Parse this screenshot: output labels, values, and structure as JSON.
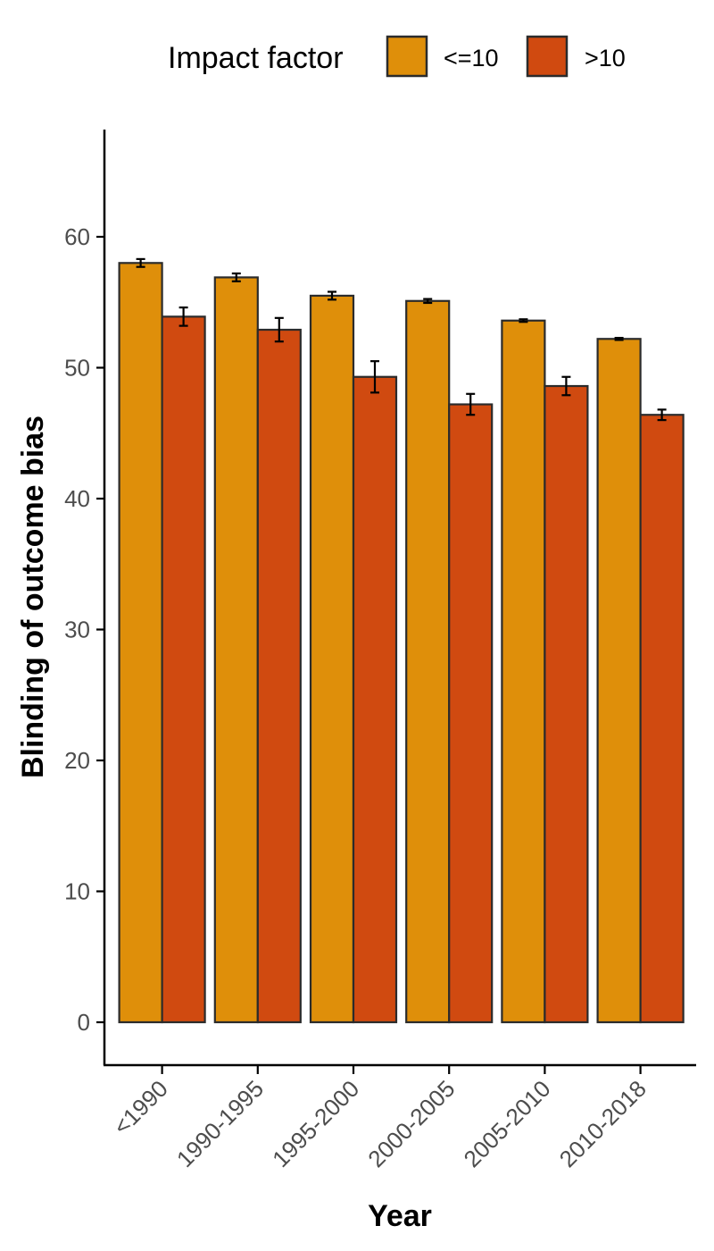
{
  "chart_data": {
    "type": "bar",
    "title": "",
    "xlabel": "Year",
    "ylabel": "Blinding of outcome bias",
    "ylim": [
      -3.2,
      68.2
    ],
    "yticks": [
      0,
      10,
      20,
      30,
      40,
      50,
      60
    ],
    "categories": [
      "<1990",
      "1990-1995",
      "1995-2000",
      "2000-2005",
      "2005-2010",
      "2010-2018"
    ],
    "legend": {
      "title": "Impact factor",
      "position": "top"
    },
    "series": [
      {
        "name": "<=10",
        "color": "#DF8F0A",
        "values": [
          58.0,
          56.9,
          55.5,
          55.1,
          53.6,
          52.2
        ],
        "errors": [
          0.3,
          0.3,
          0.3,
          0.15,
          0.1,
          0.08
        ]
      },
      {
        "name": ">10",
        "color": "#D04A10",
        "values": [
          53.9,
          52.9,
          49.3,
          47.2,
          48.6,
          46.4
        ],
        "errors": [
          0.7,
          0.9,
          1.2,
          0.8,
          0.7,
          0.4
        ]
      }
    ],
    "grid": false
  }
}
